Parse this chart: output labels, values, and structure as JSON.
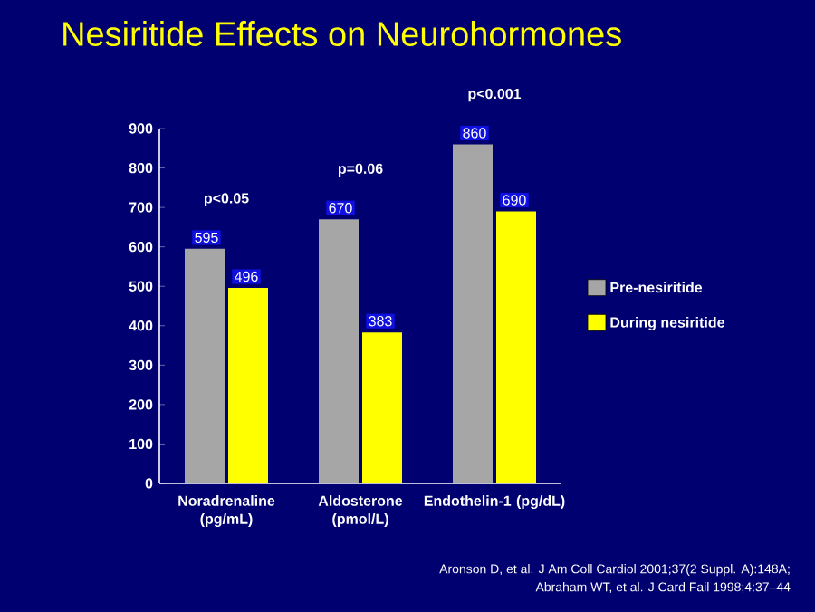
{
  "chart_data": {
    "type": "bar",
    "title": "Nesiritide Effects on Neurohormones",
    "categories": [
      "Noradrenaline (pg/mL)",
      "Aldosterone (pmol/L)",
      "Endothelin-1 (pg/dL)"
    ],
    "series": [
      {
        "name": "Pre-nesiritide",
        "color": "#a6a6a6",
        "values": [
          595,
          670,
          860
        ]
      },
      {
        "name": "During nesiritide",
        "color": "#ffff00",
        "values": [
          496,
          383,
          690
        ]
      }
    ],
    "ylim": [
      0,
      900
    ],
    "yticks": [
      0,
      100,
      200,
      300,
      400,
      500,
      600,
      700,
      800,
      900
    ],
    "data_labels": true,
    "legend": "right",
    "grid": false,
    "annotations": [
      "p<0.05",
      "p=0.06",
      "p<0.001",
      "Aronson D, et al. J Am Coll Cardiol 2001;37(2 Suppl. A):148A;",
      "Abraham WT, et al.  J Card Fail 1998;4:37–44"
    ]
  }
}
